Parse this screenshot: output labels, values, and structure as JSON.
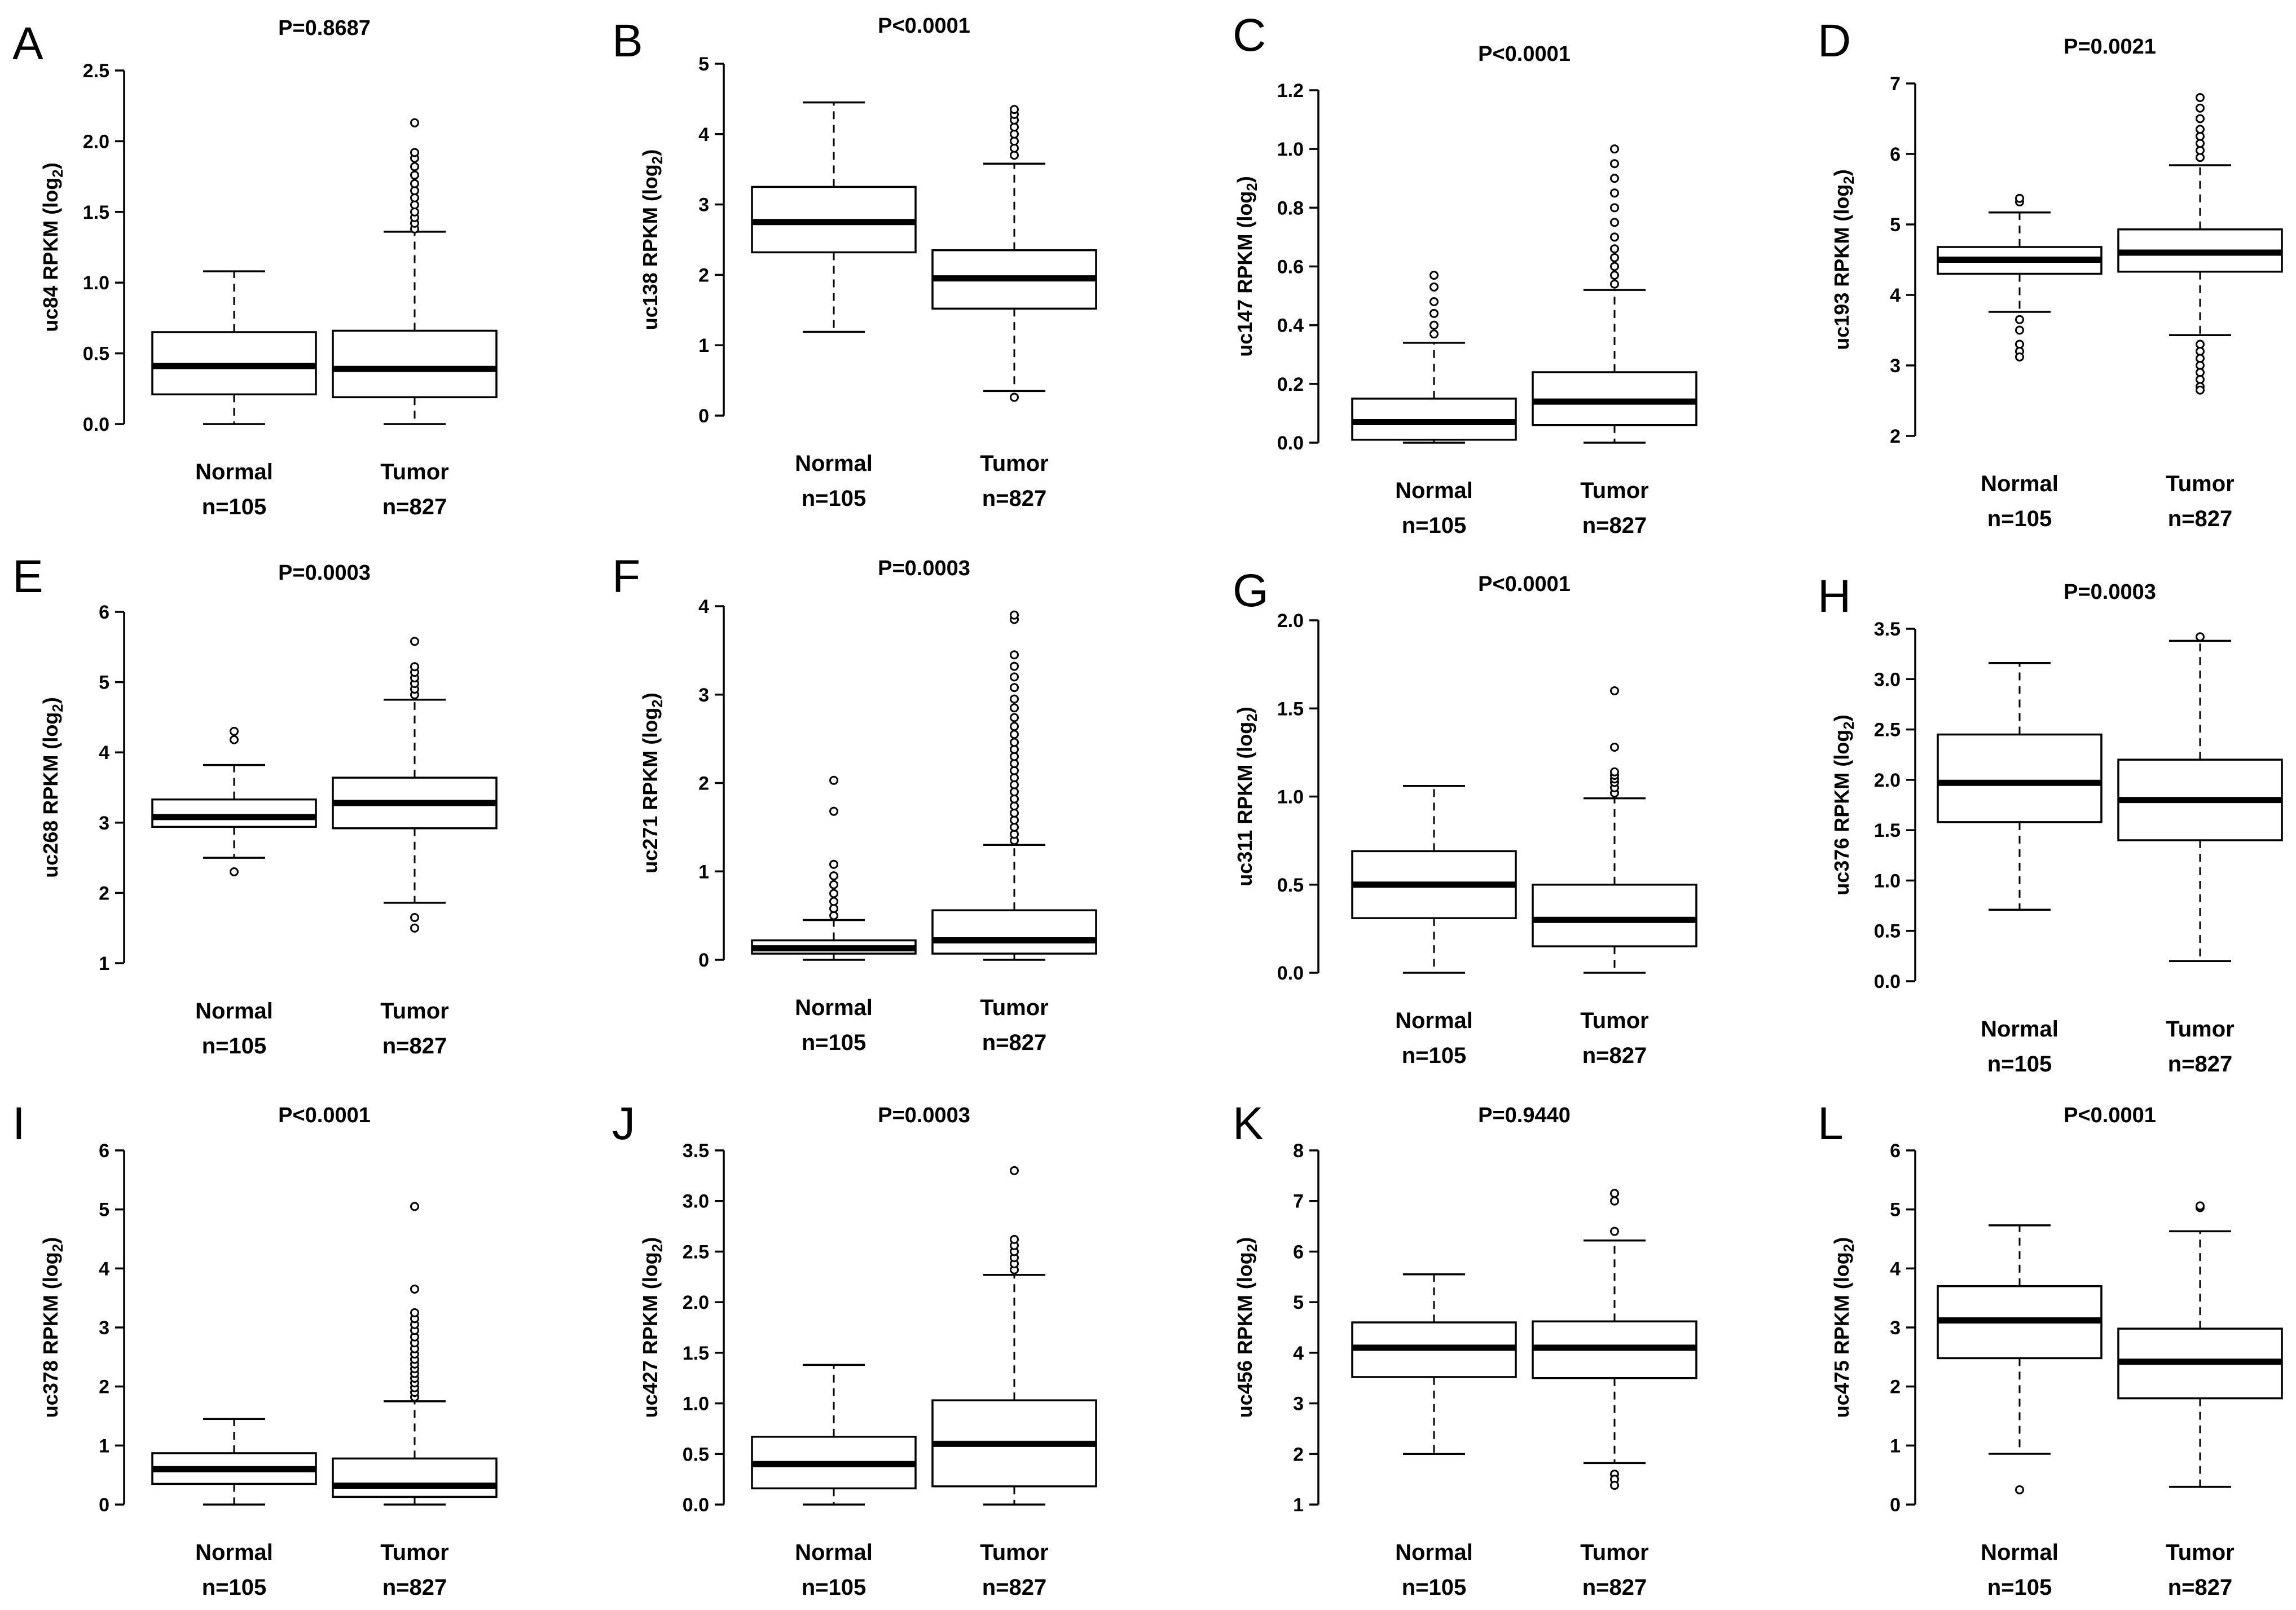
{
  "chart_data": [
    {
      "panel": "A",
      "type": "box",
      "title": "P=0.8687",
      "ylabel": "uc84 RPKM (log2)",
      "ylabel_main": "uc84 RPKM (log",
      "ylabel_sub": "2",
      "ylabel_close": ")",
      "ylim": [
        0,
        2.5
      ],
      "yticks": [
        "0.0",
        "0.5",
        "1.0",
        "1.5",
        "2.0",
        "2.5"
      ],
      "groups": [
        {
          "name": "Normal",
          "n": "n=105",
          "whisker_low": 0,
          "q1": 0.21,
          "median": 0.41,
          "q3": 0.65,
          "whisker_high": 1.08,
          "outliers": []
        },
        {
          "name": "Tumor",
          "n": "n=827",
          "whisker_low": 0,
          "q1": 0.19,
          "median": 0.39,
          "q3": 0.66,
          "whisker_high": 1.36,
          "outliers": [
            1.38,
            1.42,
            1.46,
            1.5,
            1.55,
            1.6,
            1.65,
            1.7,
            1.76,
            1.82,
            1.88,
            1.92,
            2.13
          ]
        }
      ]
    },
    {
      "panel": "B",
      "type": "box",
      "title": "P<0.0001",
      "ylabel": "uc138 RPKM (log2)",
      "ylabel_main": "uc138 RPKM (log",
      "ylabel_sub": "2",
      "ylabel_close": ")",
      "ylim": [
        0,
        5
      ],
      "yticks": [
        "0",
        "1",
        "2",
        "3",
        "4",
        "5"
      ],
      "groups": [
        {
          "name": "Normal",
          "n": "n=105",
          "whisker_low": 1.19,
          "q1": 2.32,
          "median": 2.75,
          "q3": 3.25,
          "whisker_high": 4.45,
          "outliers": []
        },
        {
          "name": "Tumor",
          "n": "n=827",
          "whisker_low": 0.35,
          "q1": 1.52,
          "median": 1.95,
          "q3": 2.35,
          "whisker_high": 3.58,
          "outliers": [
            0.26,
            3.7,
            3.8,
            3.9,
            4.0,
            4.1,
            4.2,
            4.28,
            4.35
          ]
        }
      ]
    },
    {
      "panel": "C",
      "type": "box",
      "title": "P<0.0001",
      "ylabel": "uc147 RPKM (log2)",
      "ylabel_main": "uc147 RPKM (log",
      "ylabel_sub": "2",
      "ylabel_close": ")",
      "ylim": [
        0,
        1.2
      ],
      "yticks": [
        "0.0",
        "0.2",
        "0.4",
        "0.6",
        "0.8",
        "1.0",
        "1.2"
      ],
      "groups": [
        {
          "name": "Normal",
          "n": "n=105",
          "whisker_low": 0,
          "q1": 0.01,
          "median": 0.07,
          "q3": 0.15,
          "whisker_high": 0.34,
          "outliers": [
            0.37,
            0.4,
            0.44,
            0.48,
            0.53,
            0.57
          ]
        },
        {
          "name": "Tumor",
          "n": "n=827",
          "whisker_low": 0,
          "q1": 0.06,
          "median": 0.14,
          "q3": 0.24,
          "whisker_high": 0.52,
          "outliers": [
            0.54,
            0.57,
            0.6,
            0.63,
            0.66,
            0.7,
            0.75,
            0.8,
            0.85,
            0.9,
            0.95,
            1.0
          ]
        }
      ]
    },
    {
      "panel": "D",
      "type": "box",
      "title": "P=0.0021",
      "ylabel": "uc193 RPKM (log2)",
      "ylabel_main": "uc193 RPKM (log",
      "ylabel_sub": "2",
      "ylabel_close": ")",
      "ylim": [
        2,
        7
      ],
      "yticks": [
        "2",
        "3",
        "4",
        "5",
        "6",
        "7"
      ],
      "groups": [
        {
          "name": "Normal",
          "n": "n=105",
          "whisker_low": 3.76,
          "q1": 4.3,
          "median": 4.5,
          "q3": 4.68,
          "whisker_high": 5.17,
          "outliers": [
            3.65,
            3.5,
            3.3,
            3.2,
            3.12,
            5.32,
            5.37
          ]
        },
        {
          "name": "Tumor",
          "n": "n=827",
          "whisker_low": 3.43,
          "q1": 4.33,
          "median": 4.6,
          "q3": 4.93,
          "whisker_high": 5.84,
          "outliers": [
            3.3,
            3.2,
            3.1,
            3.0,
            2.9,
            2.8,
            2.7,
            2.65,
            5.95,
            6.05,
            6.15,
            6.25,
            6.35,
            6.5,
            6.65,
            6.8
          ]
        }
      ]
    },
    {
      "panel": "E",
      "type": "box",
      "title": "P=0.0003",
      "ylabel": "uc268 RPKM (log2)",
      "ylabel_main": "uc268 RPKM (log",
      "ylabel_sub": "2",
      "ylabel_close": ")",
      "ylim": [
        1,
        6
      ],
      "yticks": [
        "1",
        "2",
        "3",
        "4",
        "5",
        "6"
      ],
      "groups": [
        {
          "name": "Normal",
          "n": "n=105",
          "whisker_low": 2.5,
          "q1": 2.94,
          "median": 3.08,
          "q3": 3.33,
          "whisker_high": 3.82,
          "outliers": [
            2.3,
            4.18,
            4.3
          ]
        },
        {
          "name": "Tumor",
          "n": "n=827",
          "whisker_low": 1.86,
          "q1": 2.92,
          "median": 3.28,
          "q3": 3.64,
          "whisker_high": 4.75,
          "outliers": [
            1.5,
            1.65,
            4.82,
            4.9,
            4.98,
            5.06,
            5.14,
            5.22,
            5.58
          ]
        }
      ]
    },
    {
      "panel": "F",
      "type": "box",
      "title": "P=0.0003",
      "ylabel": "uc271 RPKM (log2)",
      "ylabel_main": "uc271 RPKM (log",
      "ylabel_sub": "2",
      "ylabel_close": ")",
      "ylim": [
        0,
        4
      ],
      "yticks": [
        "0",
        "1",
        "2",
        "3",
        "4"
      ],
      "groups": [
        {
          "name": "Normal",
          "n": "n=105",
          "whisker_low": 0,
          "q1": 0.07,
          "median": 0.13,
          "q3": 0.22,
          "whisker_high": 0.45,
          "outliers": [
            0.5,
            0.58,
            0.66,
            0.75,
            0.85,
            0.95,
            1.08,
            1.68,
            2.03
          ]
        },
        {
          "name": "Tumor",
          "n": "n=827",
          "whisker_low": 0,
          "q1": 0.07,
          "median": 0.22,
          "q3": 0.56,
          "whisker_high": 1.3,
          "outliers": [
            1.35,
            1.42,
            1.5,
            1.58,
            1.66,
            1.74,
            1.82,
            1.9,
            1.98,
            2.06,
            2.14,
            2.22,
            2.3,
            2.38,
            2.46,
            2.55,
            2.64,
            2.74,
            2.85,
            2.95,
            3.08,
            3.2,
            3.32,
            3.45,
            3.85,
            3.9
          ]
        }
      ]
    },
    {
      "panel": "G",
      "type": "box",
      "title": "P<0.0001",
      "ylabel": "uc311 RPKM (log2)",
      "ylabel_main": "uc311 RPKM (log",
      "ylabel_sub": "2",
      "ylabel_close": ")",
      "ylim": [
        0,
        2.0
      ],
      "yticks": [
        "0.0",
        "0.5",
        "1.0",
        "1.5",
        "2.0"
      ],
      "groups": [
        {
          "name": "Normal",
          "n": "n=105",
          "whisker_low": 0,
          "q1": 0.31,
          "median": 0.5,
          "q3": 0.69,
          "whisker_high": 1.06,
          "outliers": []
        },
        {
          "name": "Tumor",
          "n": "n=827",
          "whisker_low": 0,
          "q1": 0.15,
          "median": 0.3,
          "q3": 0.5,
          "whisker_high": 0.99,
          "outliers": [
            1.02,
            1.05,
            1.08,
            1.1,
            1.12,
            1.14,
            1.28,
            1.6
          ]
        }
      ]
    },
    {
      "panel": "H",
      "type": "box",
      "title": "P=0.0003",
      "ylabel": "uc376 RPKM (log2)",
      "ylabel_main": "uc376 RPKM (log",
      "ylabel_sub": "2",
      "ylabel_close": ")",
      "ylim": [
        0,
        3.5
      ],
      "yticks": [
        "0.0",
        "0.5",
        "1.0",
        "1.5",
        "2.0",
        "2.5",
        "3.0",
        "3.5"
      ],
      "groups": [
        {
          "name": "Normal",
          "n": "n=105",
          "whisker_low": 0.71,
          "q1": 1.58,
          "median": 1.97,
          "q3": 2.45,
          "whisker_high": 3.16,
          "outliers": []
        },
        {
          "name": "Tumor",
          "n": "n=827",
          "whisker_low": 0.2,
          "q1": 1.4,
          "median": 1.8,
          "q3": 2.2,
          "whisker_high": 3.38,
          "outliers": [
            3.42
          ]
        }
      ]
    },
    {
      "panel": "I",
      "type": "box",
      "title": "P<0.0001",
      "ylabel": "uc378 RPKM (log2)",
      "ylabel_main": "uc378 RPKM (log",
      "ylabel_sub": "2",
      "ylabel_close": ")",
      "ylim": [
        0,
        6
      ],
      "yticks": [
        "0",
        "1",
        "2",
        "3",
        "4",
        "5",
        "6"
      ],
      "groups": [
        {
          "name": "Normal",
          "n": "n=105",
          "whisker_low": 0,
          "q1": 0.35,
          "median": 0.6,
          "q3": 0.87,
          "whisker_high": 1.45,
          "outliers": []
        },
        {
          "name": "Tumor",
          "n": "n=827",
          "whisker_low": 0,
          "q1": 0.13,
          "median": 0.32,
          "q3": 0.78,
          "whisker_high": 1.75,
          "outliers": [
            1.82,
            1.9,
            1.98,
            2.06,
            2.14,
            2.22,
            2.3,
            2.38,
            2.46,
            2.55,
            2.64,
            2.74,
            2.84,
            2.95,
            3.05,
            3.15,
            3.25,
            3.65,
            5.05
          ]
        }
      ]
    },
    {
      "panel": "J",
      "type": "box",
      "title": "P=0.0003",
      "ylabel": "uc427 RPKM (log2)",
      "ylabel_main": "uc427 RPKM (log",
      "ylabel_sub": "2",
      "ylabel_close": ")",
      "ylim": [
        0,
        3.5
      ],
      "yticks": [
        "0.0",
        "0.5",
        "1.0",
        "1.5",
        "2.0",
        "2.5",
        "3.0",
        "3.5"
      ],
      "groups": [
        {
          "name": "Normal",
          "n": "n=105",
          "whisker_low": 0,
          "q1": 0.16,
          "median": 0.4,
          "q3": 0.67,
          "whisker_high": 1.38,
          "outliers": []
        },
        {
          "name": "Tumor",
          "n": "n=827",
          "whisker_low": 0,
          "q1": 0.18,
          "median": 0.6,
          "q3": 1.03,
          "whisker_high": 2.27,
          "outliers": [
            2.32,
            2.38,
            2.44,
            2.5,
            2.56,
            2.62,
            3.3
          ]
        }
      ]
    },
    {
      "panel": "K",
      "type": "box",
      "title": "P=0.9440",
      "ylabel": "uc456 RPKM (log2)",
      "ylabel_main": "uc456 RPKM (log",
      "ylabel_sub": "2",
      "ylabel_close": ")",
      "ylim": [
        1,
        8
      ],
      "yticks": [
        "1",
        "2",
        "3",
        "4",
        "5",
        "6",
        "7",
        "8"
      ],
      "groups": [
        {
          "name": "Normal",
          "n": "n=105",
          "whisker_low": 2.0,
          "q1": 3.52,
          "median": 4.1,
          "q3": 4.6,
          "whisker_high": 5.55,
          "outliers": []
        },
        {
          "name": "Tumor",
          "n": "n=827",
          "whisker_low": 1.82,
          "q1": 3.5,
          "median": 4.1,
          "q3": 4.62,
          "whisker_high": 6.22,
          "outliers": [
            1.6,
            1.5,
            1.38,
            6.4,
            7.0,
            7.15
          ]
        }
      ]
    },
    {
      "panel": "L",
      "type": "box",
      "title": "P<0.0001",
      "ylabel": "uc475 RPKM (log2)",
      "ylabel_main": "uc475 RPKM (log",
      "ylabel_sub": "2",
      "ylabel_close": ")",
      "ylim": [
        0,
        6
      ],
      "yticks": [
        "0",
        "1",
        "2",
        "3",
        "4",
        "5",
        "6"
      ],
      "groups": [
        {
          "name": "Normal",
          "n": "n=105",
          "whisker_low": 0.86,
          "q1": 2.48,
          "median": 3.12,
          "q3": 3.7,
          "whisker_high": 4.73,
          "outliers": [
            0.25
          ]
        },
        {
          "name": "Tumor",
          "n": "n=827",
          "whisker_low": 0.3,
          "q1": 1.8,
          "median": 2.42,
          "q3": 2.98,
          "whisker_high": 4.63,
          "outliers": [
            5.03,
            5.06
          ]
        }
      ]
    }
  ]
}
